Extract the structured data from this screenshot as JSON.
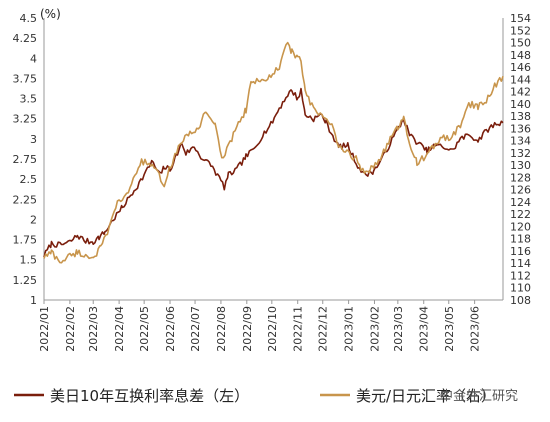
{
  "chart_data": {
    "type": "line",
    "unit_label": "(%)",
    "left_axis": {
      "min": 1,
      "max": 4.5,
      "step": 0.25,
      "ticks": [
        "4.5",
        "4.25",
        "4",
        "3.75",
        "3.5",
        "3.25",
        "3",
        "2.75",
        "2.5",
        "2.25",
        "2",
        "1.75",
        "1.5",
        "1.25",
        "1"
      ]
    },
    "right_axis": {
      "min": 108,
      "max": 154,
      "step": 2,
      "ticks": [
        "154",
        "152",
        "150",
        "148",
        "146",
        "144",
        "142",
        "140",
        "138",
        "136",
        "134",
        "132",
        "130",
        "128",
        "126",
        "124",
        "122",
        "120",
        "118",
        "116",
        "114",
        "112",
        "110",
        "108"
      ]
    },
    "x_axis": {
      "min": "2022-01-01",
      "max": "2023-07-05",
      "categories": [
        "2022/01",
        "2022/02",
        "2022/03",
        "2022/04",
        "2022/05",
        "2022/06",
        "2022/07",
        "2022/08",
        "2022/09",
        "2022/10",
        "2022/11",
        "2022/12",
        "2023/01",
        "2023/02",
        "2023/03",
        "2023/04",
        "2023/05",
        "2023/06"
      ]
    },
    "grid": false,
    "legend_position": "bottom",
    "series": [
      {
        "name": "美日10年互换利率息差（左）",
        "axis": "left",
        "color": "#7a1e0c",
        "points": [
          [
            "2022-01-01",
            1.55
          ],
          [
            "2022-01-10",
            1.7
          ],
          [
            "2022-01-20",
            1.68
          ],
          [
            "2022-02-01",
            1.72
          ],
          [
            "2022-02-10",
            1.8
          ],
          [
            "2022-02-20",
            1.73
          ],
          [
            "2022-03-01",
            1.72
          ],
          [
            "2022-03-08",
            1.78
          ],
          [
            "2022-03-15",
            1.84
          ],
          [
            "2022-03-25",
            2.0
          ],
          [
            "2022-04-05",
            2.15
          ],
          [
            "2022-04-15",
            2.3
          ],
          [
            "2022-04-25",
            2.45
          ],
          [
            "2022-05-05",
            2.62
          ],
          [
            "2022-05-10",
            2.72
          ],
          [
            "2022-05-20",
            2.55
          ],
          [
            "2022-05-25",
            2.65
          ],
          [
            "2022-06-01",
            2.62
          ],
          [
            "2022-06-10",
            2.82
          ],
          [
            "2022-06-15",
            2.95
          ],
          [
            "2022-06-20",
            2.82
          ],
          [
            "2022-06-30",
            2.9
          ],
          [
            "2022-07-10",
            2.75
          ],
          [
            "2022-07-20",
            2.68
          ],
          [
            "2022-08-01",
            2.48
          ],
          [
            "2022-08-05",
            2.4
          ],
          [
            "2022-08-10",
            2.55
          ],
          [
            "2022-08-20",
            2.62
          ],
          [
            "2022-08-31",
            2.78
          ],
          [
            "2022-09-10",
            2.88
          ],
          [
            "2022-09-20",
            3.05
          ],
          [
            "2022-09-30",
            3.18
          ],
          [
            "2022-10-10",
            3.38
          ],
          [
            "2022-10-20",
            3.55
          ],
          [
            "2022-10-25",
            3.6
          ],
          [
            "2022-11-01",
            3.5
          ],
          [
            "2022-11-05",
            3.6
          ],
          [
            "2022-11-10",
            3.3
          ],
          [
            "2022-11-20",
            3.25
          ],
          [
            "2022-11-30",
            3.3
          ],
          [
            "2022-12-05",
            3.2
          ],
          [
            "2022-12-15",
            3.0
          ],
          [
            "2022-12-20",
            2.9
          ],
          [
            "2022-12-31",
            2.92
          ],
          [
            "2023-01-10",
            2.7
          ],
          [
            "2023-01-20",
            2.55
          ],
          [
            "2023-01-31",
            2.6
          ],
          [
            "2023-02-10",
            2.75
          ],
          [
            "2023-02-20",
            2.95
          ],
          [
            "2023-02-28",
            3.1
          ],
          [
            "2023-03-08",
            3.25
          ],
          [
            "2023-03-15",
            3.05
          ],
          [
            "2023-03-25",
            2.95
          ],
          [
            "2023-04-05",
            2.85
          ],
          [
            "2023-04-15",
            2.92
          ],
          [
            "2023-04-25",
            2.9
          ],
          [
            "2023-05-05",
            2.85
          ],
          [
            "2023-05-15",
            3.0
          ],
          [
            "2023-05-25",
            3.05
          ],
          [
            "2023-06-05",
            2.98
          ],
          [
            "2023-06-15",
            3.1
          ],
          [
            "2023-06-25",
            3.18
          ],
          [
            "2023-07-05",
            3.2
          ]
        ]
      },
      {
        "name": "美元/日元汇率（右）",
        "axis": "right",
        "color": "#c8954c",
        "points": [
          [
            "2022-01-01",
            115.0
          ],
          [
            "2022-01-10",
            115.8
          ],
          [
            "2022-01-20",
            114.2
          ],
          [
            "2022-02-01",
            115.2
          ],
          [
            "2022-02-10",
            115.8
          ],
          [
            "2022-02-20",
            115.2
          ],
          [
            "2022-03-01",
            115.0
          ],
          [
            "2022-03-10",
            116.5
          ],
          [
            "2022-03-20",
            119.5
          ],
          [
            "2022-03-28",
            123.5
          ],
          [
            "2022-04-10",
            125.0
          ],
          [
            "2022-04-20",
            128.5
          ],
          [
            "2022-04-28",
            130.5
          ],
          [
            "2022-05-05",
            130.5
          ],
          [
            "2022-05-15",
            129.0
          ],
          [
            "2022-05-25",
            127.0
          ],
          [
            "2022-06-05",
            131.0
          ],
          [
            "2022-06-15",
            134.0
          ],
          [
            "2022-06-25",
            135.0
          ],
          [
            "2022-07-05",
            136.0
          ],
          [
            "2022-07-14",
            139.0
          ],
          [
            "2022-07-25",
            136.5
          ],
          [
            "2022-08-02",
            131.0
          ],
          [
            "2022-08-10",
            133.0
          ],
          [
            "2022-08-20",
            136.5
          ],
          [
            "2022-08-31",
            139.0
          ],
          [
            "2022-09-07",
            144.0
          ],
          [
            "2022-09-20",
            143.5
          ],
          [
            "2022-09-30",
            144.5
          ],
          [
            "2022-10-10",
            146.0
          ],
          [
            "2022-10-20",
            150.0
          ],
          [
            "2022-10-25",
            148.5
          ],
          [
            "2022-11-01",
            147.5
          ],
          [
            "2022-11-05",
            147.0
          ],
          [
            "2022-11-10",
            142.0
          ],
          [
            "2022-11-20",
            139.0
          ],
          [
            "2022-11-30",
            138.0
          ],
          [
            "2022-12-10",
            137.0
          ],
          [
            "2022-12-20",
            133.0
          ],
          [
            "2022-12-31",
            132.0
          ],
          [
            "2023-01-10",
            131.0
          ],
          [
            "2023-01-20",
            128.5
          ],
          [
            "2023-01-31",
            130.0
          ],
          [
            "2023-02-10",
            131.5
          ],
          [
            "2023-02-20",
            134.5
          ],
          [
            "2023-03-01",
            136.0
          ],
          [
            "2023-03-08",
            137.5
          ],
          [
            "2023-03-15",
            133.5
          ],
          [
            "2023-03-24",
            130.5
          ],
          [
            "2023-04-05",
            131.5
          ],
          [
            "2023-04-15",
            133.5
          ],
          [
            "2023-04-25",
            134.5
          ],
          [
            "2023-05-05",
            134.5
          ],
          [
            "2023-05-15",
            136.5
          ],
          [
            "2023-05-25",
            140.0
          ],
          [
            "2023-06-05",
            139.5
          ],
          [
            "2023-06-15",
            140.5
          ],
          [
            "2023-06-25",
            143.0
          ],
          [
            "2023-07-05",
            144.5
          ]
        ]
      }
    ]
  },
  "watermark": "中金外汇研究"
}
